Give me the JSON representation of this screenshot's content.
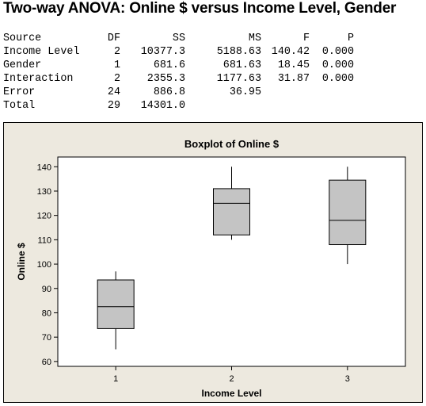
{
  "title": "Two-way ANOVA: Online $ versus Income Level, Gender",
  "anova_table": {
    "headers": [
      "Source",
      "DF",
      "SS",
      "MS",
      "F",
      "P"
    ],
    "rows": [
      [
        "Income Level",
        "2",
        "10377.3",
        "5188.63",
        "140.42",
        "0.000"
      ],
      [
        "Gender",
        "1",
        "681.6",
        "681.63",
        "18.45",
        "0.000"
      ],
      [
        "Interaction",
        "2",
        "2355.3",
        "1177.63",
        "31.87",
        "0.000"
      ],
      [
        "Error",
        "24",
        "886.8",
        "36.95",
        "",
        ""
      ],
      [
        "Total",
        "29",
        "14301.0",
        "",
        "",
        ""
      ]
    ]
  },
  "chart_data": {
    "type": "boxplot",
    "title": "Boxplot of Online $",
    "xlabel": "Income Level",
    "ylabel": "Online $",
    "categories": [
      "1",
      "2",
      "3"
    ],
    "ylim": [
      58,
      144
    ],
    "yticks": [
      60,
      70,
      80,
      90,
      100,
      110,
      120,
      130,
      140
    ],
    "boxes": [
      {
        "category": "1",
        "min": 65,
        "q1": 73.5,
        "median": 82.5,
        "q3": 93.5,
        "max": 97
      },
      {
        "category": "2",
        "min": 110,
        "q1": 112,
        "median": 125,
        "q3": 131,
        "max": 140
      },
      {
        "category": "3",
        "min": 100,
        "q1": 108,
        "median": 118,
        "q3": 134.5,
        "max": 140
      }
    ],
    "colors": {
      "box_fill": "#c4c4c4",
      "frame_bg": "#ede9df",
      "plot_bg": "#ffffff",
      "line": "#000000"
    }
  }
}
